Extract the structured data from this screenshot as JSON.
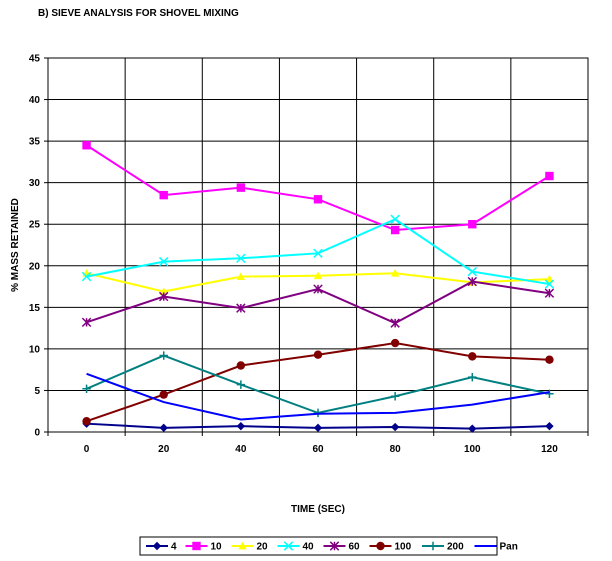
{
  "chart_data": {
    "type": "line",
    "title": "B) SIEVE ANALYSIS FOR SHOVEL MIXING",
    "xlabel": "TIME (SEC)",
    "ylabel": "% MASS RETAINED",
    "x": [
      0,
      20,
      40,
      60,
      80,
      100,
      120
    ],
    "xlim": [
      0,
      120
    ],
    "ylim": [
      0,
      45
    ],
    "y_ticks": [
      "0",
      "5",
      "10",
      "15",
      "20",
      "25",
      "30",
      "35",
      "40",
      "45"
    ],
    "x_ticks": [
      "0",
      "20",
      "40",
      "60",
      "80",
      "100",
      "120"
    ],
    "grid": true,
    "legend_position": "bottom",
    "series": [
      {
        "name": "4",
        "color": "#00008B",
        "marker": "diamond",
        "values": [
          1.0,
          0.5,
          0.7,
          0.5,
          0.6,
          0.4,
          0.7
        ]
      },
      {
        "name": "10",
        "color": "#FF00FF",
        "marker": "square",
        "values": [
          34.5,
          28.5,
          29.4,
          28.0,
          24.3,
          25.0,
          30.8
        ]
      },
      {
        "name": "20",
        "color": "#FFFF00",
        "marker": "triangle",
        "values": [
          19.1,
          16.9,
          18.7,
          18.8,
          19.1,
          18.0,
          18.4
        ]
      },
      {
        "name": "40",
        "color": "#00FFFF",
        "marker": "x",
        "values": [
          18.7,
          20.5,
          20.9,
          21.5,
          25.6,
          19.3,
          17.8
        ]
      },
      {
        "name": "60",
        "color": "#800080",
        "marker": "star",
        "values": [
          13.2,
          16.3,
          14.9,
          17.2,
          13.1,
          18.1,
          16.7
        ]
      },
      {
        "name": "100",
        "color": "#800000",
        "marker": "circle",
        "values": [
          1.3,
          4.5,
          8.0,
          9.3,
          10.7,
          9.1,
          8.7
        ]
      },
      {
        "name": "200",
        "color": "#008080",
        "marker": "plus",
        "values": [
          5.2,
          9.2,
          5.7,
          2.3,
          4.3,
          6.6,
          4.6
        ]
      },
      {
        "name": "Pan",
        "color": "#0000FF",
        "marker": "none",
        "values": [
          7.0,
          3.6,
          1.5,
          2.2,
          2.3,
          3.3,
          4.8
        ]
      }
    ]
  }
}
